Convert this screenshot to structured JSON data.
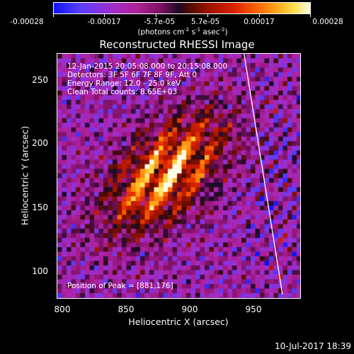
{
  "colorbar": {
    "ticks": [
      "-0.00028",
      "-0.00017",
      "-5.7e-05",
      "5.7e-05",
      "0.00017",
      "0.00028"
    ],
    "unit_prefix": "(photons cm",
    "unit_exp1": "-2",
    "unit_mid": " s",
    "unit_exp2": "-1",
    "unit_mid2": " asec",
    "unit_exp3": "-2",
    "unit_suffix": ")"
  },
  "title": "Reconstructed RHESSI Image",
  "info": {
    "time_range": "12-Jan-2015 20:05:08.000 to 20:15:08.000",
    "detectors": "Detectors: 3F 5F 6F 7F 8F 9F, Att 0",
    "energy": "Energy Range: 12.0 - 25.0 keV",
    "clean": "Clean     Total counts: 8.65E+03",
    "peak": "Position of Peak = [881,176]"
  },
  "axes": {
    "xlabel": "Heliocentric X (arcsec)",
    "ylabel": "Heliocentric Y (arcsec)",
    "xticks": [
      "800",
      "850",
      "900",
      "950"
    ],
    "yticks": [
      "250",
      "200",
      "150",
      "100"
    ],
    "xrange": [
      796,
      987
    ],
    "yrange": [
      76,
      270
    ]
  },
  "image": {
    "peak_x": 881,
    "peak_y": 176,
    "limb_line": [
      [
        942,
        270
      ],
      [
        972,
        80
      ]
    ]
  },
  "timestamp": "10-Jul-2017 18:39"
}
